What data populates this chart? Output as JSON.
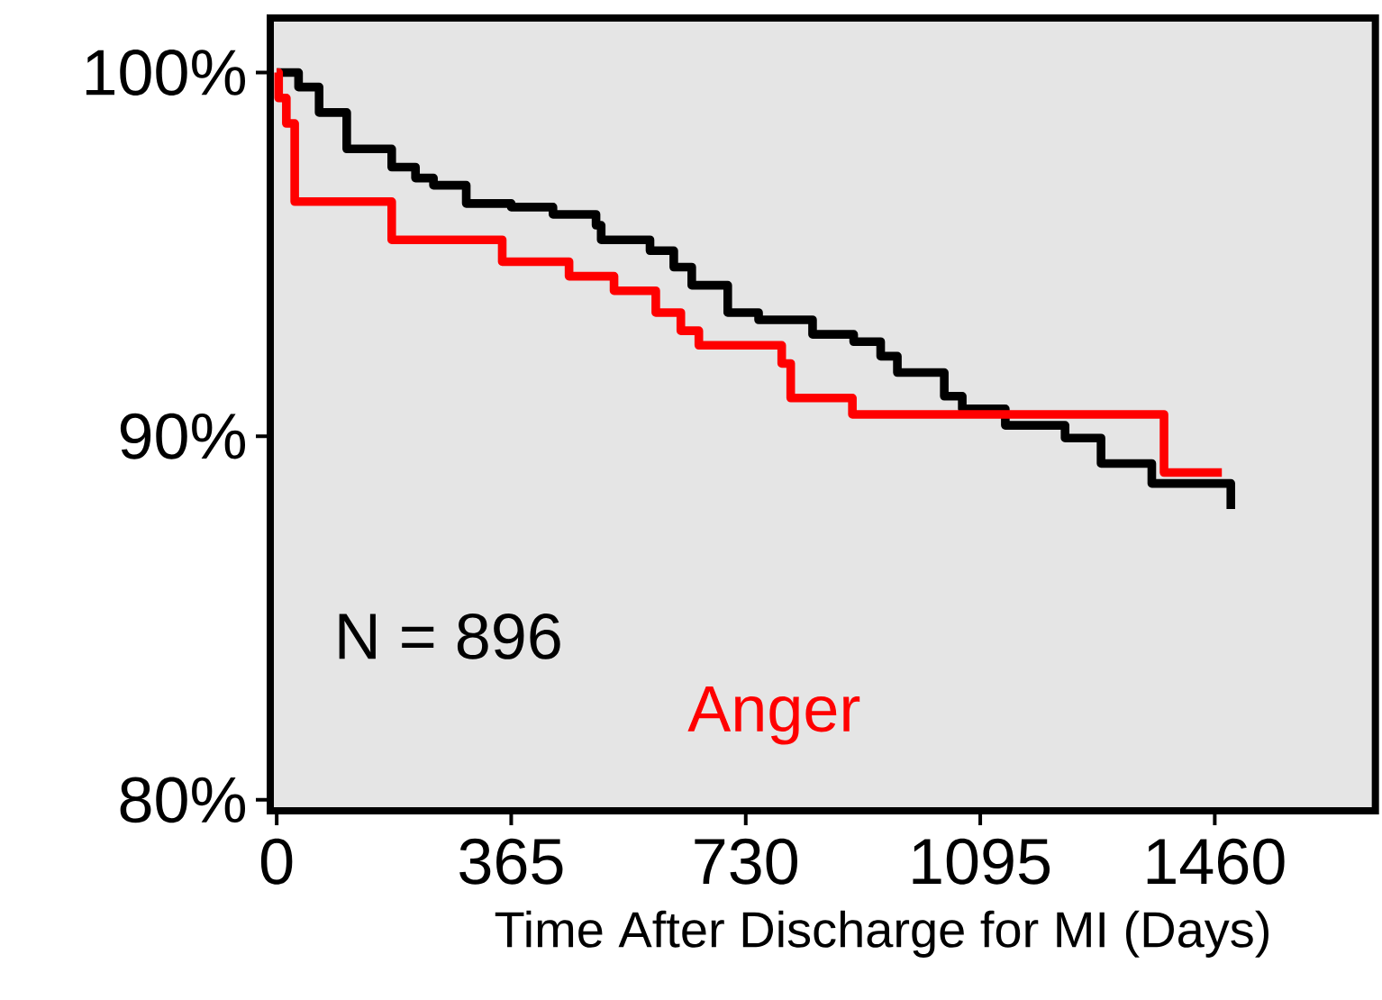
{
  "chart_data": {
    "type": "step",
    "xlabel": "Time After Discharge for MI (Days)",
    "xlim": [
      -10,
      1710
    ],
    "ylim": [
      79.7,
      101.5
    ],
    "xticks": [
      0,
      365,
      730,
      1095,
      1460
    ],
    "yticks": [
      {
        "value": 80,
        "label": "80%"
      },
      {
        "value": 90,
        "label": "90%"
      },
      {
        "value": 100,
        "label": "100%"
      }
    ],
    "annotations": [
      "N = 896"
    ],
    "series": [
      {
        "color": "#000000",
        "x": [
          0,
          34,
          66,
          109,
          179,
          216,
          244,
          295,
          365,
          430,
          497,
          505,
          581,
          618,
          646,
          702,
          750,
          834,
          898,
          940,
          966,
          1039,
          1067,
          1134,
          1227,
          1283,
          1362,
          1443,
          1485
        ],
        "values": [
          100,
          99.6,
          98.9,
          97.9,
          97.4,
          97.1,
          96.9,
          96.4,
          96.3,
          96.1,
          95.8,
          95.4,
          95.1,
          94.65,
          94.15,
          93.4,
          93.2,
          92.8,
          92.6,
          92.2,
          91.75,
          91.1,
          90.75,
          90.3,
          89.95,
          89.25,
          88.7,
          88.7,
          88.0
        ]
      },
      {
        "name": "Anger",
        "color": "#ff0000",
        "x": [
          0,
          3,
          15,
          28,
          179,
          351,
          455,
          525,
          590,
          629,
          657,
          786,
          800,
          896,
          1381,
          1471
        ],
        "values": [
          100,
          99.3,
          98.6,
          96.45,
          95.4,
          94.8,
          94.4,
          94.0,
          93.4,
          92.9,
          92.5,
          92.0,
          91.05,
          90.6,
          89.0,
          89.0
        ]
      }
    ]
  }
}
